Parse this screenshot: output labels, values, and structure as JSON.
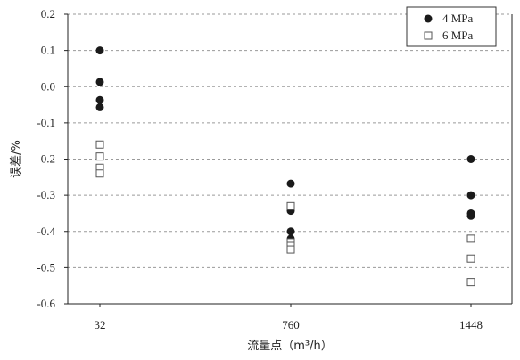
{
  "chart_data": {
    "type": "scatter",
    "title": "",
    "xlabel": "流量点（m³/h）",
    "ylabel": "误差/%",
    "categories": [
      "32",
      "760",
      "1448"
    ],
    "ylim": [
      -0.6,
      0.2
    ],
    "yticks": [
      0.2,
      0.1,
      0.0,
      -0.1,
      -0.2,
      -0.3,
      -0.4,
      -0.5,
      -0.6
    ],
    "ytick_labels": [
      "0.2",
      "0.1",
      "0.0",
      "-0.1",
      "-0.2",
      "-0.3",
      "-0.4",
      "-0.5",
      "-0.6"
    ],
    "grid": "dashed horizontal",
    "legend_position": "top-right",
    "series": [
      {
        "name": "4 MPa",
        "marker": "filled-circle",
        "color": "#1a1a1a",
        "points": {
          "32": [
            0.1,
            0.013,
            -0.037,
            -0.057
          ],
          "760": [
            -0.268,
            -0.343,
            -0.4,
            -0.42
          ],
          "1448": [
            -0.2,
            -0.3,
            -0.35,
            -0.357
          ]
        }
      },
      {
        "name": "6 MPa",
        "marker": "open-square",
        "color": "#555555",
        "points": {
          "32": [
            -0.16,
            -0.193,
            -0.224,
            -0.24
          ],
          "760": [
            -0.33,
            -0.43,
            -0.44,
            -0.45
          ],
          "1448": [
            -0.42,
            -0.475,
            -0.54
          ]
        }
      }
    ]
  }
}
